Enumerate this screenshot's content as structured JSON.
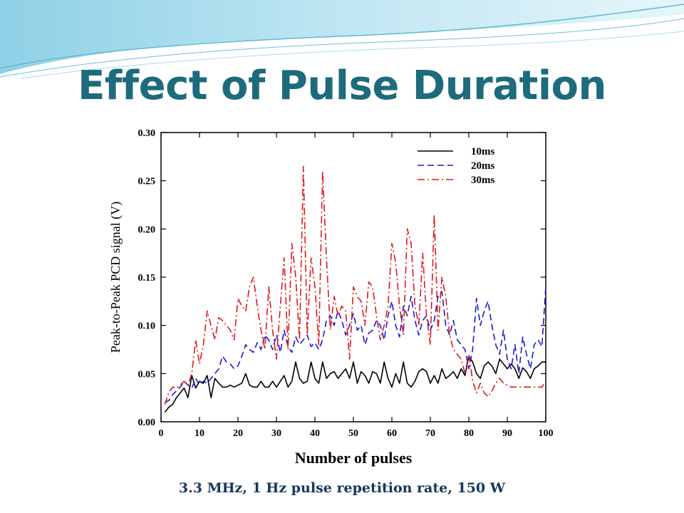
{
  "slide": {
    "title": "Effect of Pulse Duration",
    "caption": "3.3 MHz, 1 Hz pulse repetition rate, 150 W",
    "colors": {
      "title": "#1d6b7d",
      "caption": "#17365d",
      "banner_start": "#9fd8ea",
      "banner_end": "#e6f6fb"
    }
  },
  "chart_data": {
    "type": "line",
    "xlabel": "Number of pulses",
    "ylabel": "Peak-to-Peak PCD signal  (V)",
    "xlim": [
      0,
      100
    ],
    "ylim": [
      0,
      0.3
    ],
    "x_ticks": [
      "0",
      "10",
      "20",
      "30",
      "40",
      "50",
      "60",
      "70",
      "80",
      "90",
      "100"
    ],
    "y_ticks": [
      "0.00",
      "0.05",
      "0.10",
      "0.15",
      "0.20",
      "0.25",
      "0.30"
    ],
    "grid": false,
    "legend_position": "top-right",
    "series": [
      {
        "name": "10ms",
        "color": "#000000",
        "dash": "solid",
        "x": [
          1,
          2,
          3,
          4,
          5,
          6,
          7,
          8,
          9,
          10,
          11,
          12,
          13,
          14,
          15,
          16,
          17,
          18,
          19,
          20,
          21,
          22,
          23,
          24,
          25,
          26,
          27,
          28,
          29,
          30,
          31,
          32,
          33,
          34,
          35,
          36,
          37,
          38,
          39,
          40,
          41,
          42,
          43,
          44,
          45,
          46,
          47,
          48,
          49,
          50,
          51,
          52,
          53,
          54,
          55,
          56,
          57,
          58,
          59,
          60,
          61,
          62,
          63,
          64,
          65,
          66,
          67,
          68,
          69,
          70,
          71,
          72,
          73,
          74,
          75,
          76,
          77,
          78,
          79,
          80,
          81,
          82,
          83,
          84,
          85,
          86,
          87,
          88,
          89,
          90,
          91,
          92,
          93,
          94,
          95,
          96,
          97,
          98,
          99,
          100
        ],
        "values": [
          0.01,
          0.015,
          0.018,
          0.025,
          0.03,
          0.035,
          0.025,
          0.048,
          0.035,
          0.042,
          0.04,
          0.048,
          0.025,
          0.045,
          0.04,
          0.036,
          0.036,
          0.038,
          0.036,
          0.038,
          0.04,
          0.05,
          0.038,
          0.036,
          0.036,
          0.042,
          0.036,
          0.036,
          0.042,
          0.036,
          0.042,
          0.048,
          0.036,
          0.042,
          0.062,
          0.045,
          0.04,
          0.042,
          0.062,
          0.045,
          0.04,
          0.062,
          0.045,
          0.05,
          0.052,
          0.045,
          0.05,
          0.055,
          0.045,
          0.062,
          0.04,
          0.052,
          0.048,
          0.04,
          0.052,
          0.05,
          0.04,
          0.062,
          0.045,
          0.036,
          0.05,
          0.04,
          0.062,
          0.04,
          0.036,
          0.042,
          0.052,
          0.055,
          0.052,
          0.04,
          0.048,
          0.04,
          0.055,
          0.045,
          0.048,
          0.052,
          0.045,
          0.055,
          0.048,
          0.068,
          0.062,
          0.05,
          0.045,
          0.058,
          0.062,
          0.058,
          0.05,
          0.065,
          0.06,
          0.055,
          0.06,
          0.055,
          0.045,
          0.056,
          0.052,
          0.045,
          0.055,
          0.058,
          0.062,
          0.062
        ]
      },
      {
        "name": "20ms",
        "color": "#1a1ad4",
        "dash": "dashed",
        "x": [
          1,
          2,
          3,
          4,
          5,
          6,
          7,
          8,
          9,
          10,
          11,
          12,
          13,
          14,
          15,
          16,
          17,
          18,
          19,
          20,
          21,
          22,
          23,
          24,
          25,
          26,
          27,
          28,
          29,
          30,
          31,
          32,
          33,
          34,
          35,
          36,
          37,
          38,
          39,
          40,
          41,
          42,
          43,
          44,
          45,
          46,
          47,
          48,
          49,
          50,
          51,
          52,
          53,
          54,
          55,
          56,
          57,
          58,
          59,
          60,
          61,
          62,
          63,
          64,
          65,
          66,
          67,
          68,
          69,
          70,
          71,
          72,
          73,
          74,
          75,
          76,
          77,
          78,
          79,
          80,
          81,
          82,
          83,
          84,
          85,
          86,
          87,
          88,
          89,
          90,
          91,
          92,
          93,
          94,
          95,
          96,
          97,
          98,
          99,
          100
        ],
        "values": [
          0.02,
          0.022,
          0.028,
          0.032,
          0.036,
          0.042,
          0.038,
          0.035,
          0.045,
          0.038,
          0.042,
          0.04,
          0.045,
          0.05,
          0.055,
          0.068,
          0.062,
          0.06,
          0.055,
          0.058,
          0.068,
          0.08,
          0.075,
          0.072,
          0.082,
          0.075,
          0.09,
          0.085,
          0.075,
          0.09,
          0.072,
          0.095,
          0.078,
          0.072,
          0.088,
          0.08,
          0.085,
          0.09,
          0.078,
          0.082,
          0.075,
          0.085,
          0.105,
          0.11,
          0.1,
          0.115,
          0.105,
          0.09,
          0.1,
          0.112,
          0.095,
          0.1,
          0.08,
          0.092,
          0.095,
          0.105,
          0.1,
          0.085,
          0.11,
          0.125,
          0.1,
          0.088,
          0.12,
          0.11,
          0.13,
          0.105,
          0.09,
          0.105,
          0.11,
          0.095,
          0.105,
          0.13,
          0.135,
          0.1,
          0.09,
          0.105,
          0.085,
          0.08,
          0.075,
          0.055,
          0.075,
          0.128,
          0.1,
          0.115,
          0.125,
          0.1,
          0.08,
          0.07,
          0.095,
          0.065,
          0.055,
          0.08,
          0.05,
          0.088,
          0.07,
          0.055,
          0.08,
          0.085,
          0.078,
          0.14
        ]
      },
      {
        "name": "30ms",
        "color": "#e01818",
        "dash": "dashdot",
        "x": [
          1,
          2,
          3,
          4,
          5,
          6,
          7,
          8,
          9,
          10,
          11,
          12,
          13,
          14,
          15,
          16,
          17,
          18,
          19,
          20,
          21,
          22,
          23,
          24,
          25,
          26,
          27,
          28,
          29,
          30,
          31,
          32,
          33,
          34,
          35,
          36,
          37,
          38,
          39,
          40,
          41,
          42,
          43,
          44,
          45,
          46,
          47,
          48,
          49,
          50,
          51,
          52,
          53,
          54,
          55,
          56,
          57,
          58,
          59,
          60,
          61,
          62,
          63,
          64,
          65,
          66,
          67,
          68,
          69,
          70,
          71,
          72,
          73,
          74,
          75,
          76,
          77,
          78,
          79,
          80,
          81,
          82,
          83,
          84,
          85,
          86,
          87,
          88,
          89,
          90,
          91,
          92,
          93,
          94,
          95,
          96,
          97,
          98,
          99,
          100
        ],
        "values": [
          0.018,
          0.03,
          0.036,
          0.035,
          0.038,
          0.042,
          0.038,
          0.05,
          0.085,
          0.06,
          0.08,
          0.115,
          0.1,
          0.085,
          0.108,
          0.105,
          0.1,
          0.095,
          0.085,
          0.128,
          0.12,
          0.115,
          0.14,
          0.15,
          0.12,
          0.095,
          0.075,
          0.14,
          0.095,
          0.065,
          0.12,
          0.17,
          0.075,
          0.185,
          0.15,
          0.085,
          0.265,
          0.09,
          0.17,
          0.14,
          0.08,
          0.26,
          0.17,
          0.095,
          0.13,
          0.11,
          0.12,
          0.115,
          0.065,
          0.14,
          0.13,
          0.125,
          0.1,
          0.145,
          0.14,
          0.11,
          0.085,
          0.1,
          0.12,
          0.185,
          0.165,
          0.12,
          0.09,
          0.2,
          0.185,
          0.12,
          0.1,
          0.175,
          0.11,
          0.08,
          0.215,
          0.095,
          0.15,
          0.13,
          0.09,
          0.075,
          0.07,
          0.065,
          0.05,
          0.07,
          0.042,
          0.03,
          0.04,
          0.03,
          0.026,
          0.032,
          0.04,
          0.045,
          0.04,
          0.038,
          0.036,
          0.036,
          0.036,
          0.036,
          0.036,
          0.036,
          0.036,
          0.036,
          0.036,
          0.042
        ]
      }
    ]
  }
}
